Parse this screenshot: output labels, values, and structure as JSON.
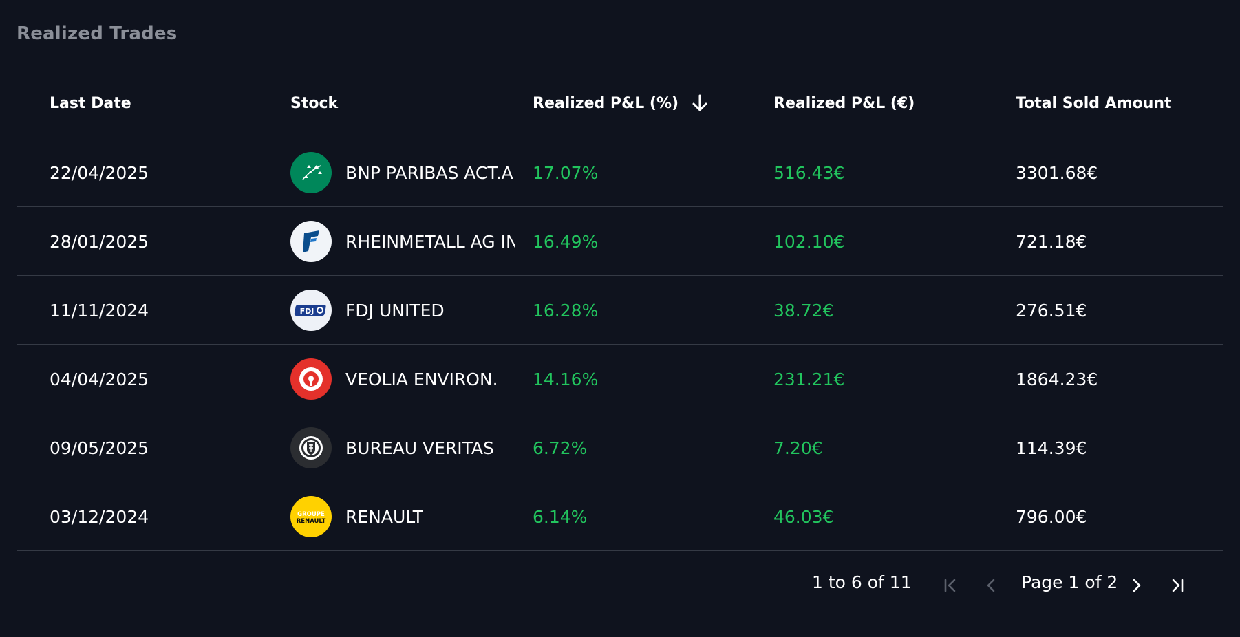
{
  "panel": {
    "title": "Realized Trades"
  },
  "columns": [
    "Last Date",
    "Stock",
    "Realized P&L (%)",
    "Realized P&L (€)",
    "Total Sold Amount"
  ],
  "rows": [
    {
      "date": "22/04/2025",
      "stock": "BNP PARIBAS ACT.A",
      "pnl_pct": "17.07%",
      "pnl_eur": "516.43€",
      "sold": "3301.68€",
      "logo": "bnp-paribas-logo"
    },
    {
      "date": "28/01/2025",
      "stock": "RHEINMETALL AG INH",
      "pnl_pct": "16.49%",
      "pnl_eur": "102.10€",
      "sold": "721.18€",
      "logo": "rheinmetall-logo"
    },
    {
      "date": "11/11/2024",
      "stock": "FDJ UNITED",
      "pnl_pct": "16.28%",
      "pnl_eur": "38.72€",
      "sold": "276.51€",
      "logo": "fdj-logo",
      "logo_text": "FDJ"
    },
    {
      "date": "04/04/2025",
      "stock": "VEOLIA ENVIRON.",
      "pnl_pct": "14.16%",
      "pnl_eur": "231.21€",
      "sold": "1864.23€",
      "logo": "veolia-logo"
    },
    {
      "date": "09/05/2025",
      "stock": "BUREAU VERITAS",
      "pnl_pct": "6.72%",
      "pnl_eur": "7.20€",
      "sold": "114.39€",
      "logo": "bureau-veritas-logo"
    },
    {
      "date": "03/12/2024",
      "stock": "RENAULT",
      "pnl_pct": "6.14%",
      "pnl_eur": "46.03€",
      "sold": "796.00€",
      "logo": "renault-logo",
      "logo_text_1": "GROUPE",
      "logo_text_2": "RENAULT"
    }
  ],
  "pagination": {
    "range_text": "1 to 6 of 11",
    "page_text": "Page 1 of 2"
  },
  "colors": {
    "background": "#0f131e",
    "positive": "#22c55e",
    "title_muted": "#8b8f98",
    "divider": "#353a45"
  }
}
